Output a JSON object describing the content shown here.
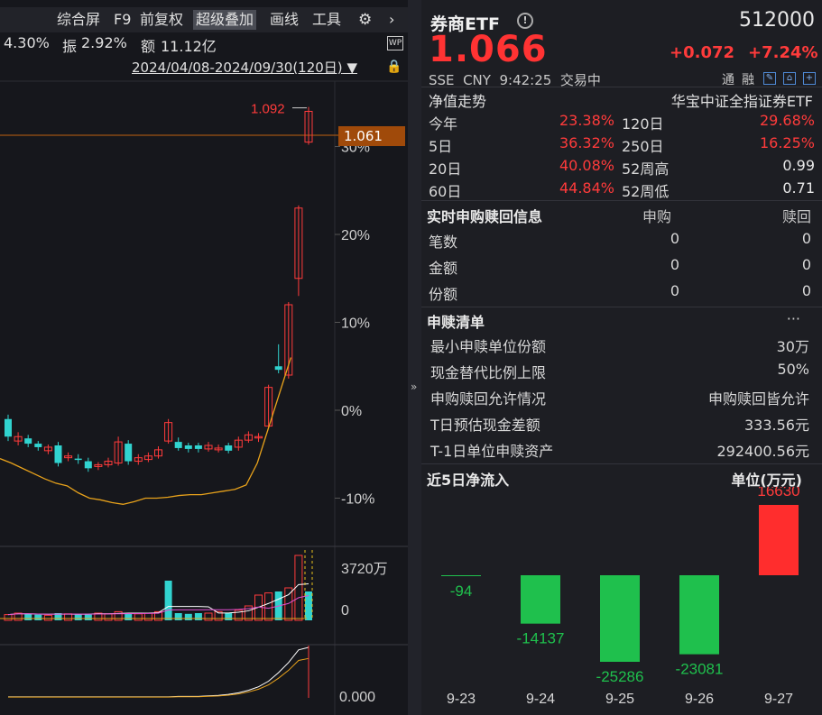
{
  "toolbar": {
    "items": [
      "综合屏",
      "F9",
      "前复权",
      "超级叠加",
      "画线",
      "工具"
    ],
    "active": "超级叠加"
  },
  "stats": {
    "change_pct": "4.30%",
    "amplitude_label": "振",
    "amplitude": "2.92%",
    "amount_label": "额",
    "amount": "11.12亿"
  },
  "date_range": "2024/04/08-2024/09/30(120日)",
  "wp_badge": "WP",
  "kline": {
    "max_label": "1.092",
    "current_tag": "1.061",
    "pct_axis": [
      "30%",
      "20%",
      "10%",
      "0%",
      "-10%"
    ],
    "volume_axis_top": "3720万",
    "volume_axis_zero": "0",
    "indicator_axis": "0.000",
    "candles": [
      {
        "o": -1.0,
        "c": -3.0,
        "h": -0.5,
        "l": -3.5,
        "up": true
      },
      {
        "o": -3.5,
        "c": -3.0,
        "h": -2.5,
        "l": -4.0,
        "up": true
      },
      {
        "o": -3.2,
        "c": -3.8,
        "h": -2.8,
        "l": -4.2,
        "up": false
      },
      {
        "o": -3.8,
        "c": -4.2,
        "h": -3.5,
        "l": -4.6,
        "up": false
      },
      {
        "o": -4.6,
        "c": -4.2,
        "h": -3.9,
        "l": -5.0,
        "up": true
      },
      {
        "o": -4.0,
        "c": -6.0,
        "h": -3.6,
        "l": -6.4,
        "up": false
      },
      {
        "o": -5.4,
        "c": -5.2,
        "h": -4.8,
        "l": -5.8,
        "up": true
      },
      {
        "o": -5.5,
        "c": -5.6,
        "h": -5.0,
        "l": -6.1,
        "up": false
      },
      {
        "o": -5.8,
        "c": -6.6,
        "h": -5.4,
        "l": -7.0,
        "up": false
      },
      {
        "o": -6.4,
        "c": -6.2,
        "h": -5.9,
        "l": -6.8,
        "up": true
      },
      {
        "o": -6.2,
        "c": -5.8,
        "h": -5.4,
        "l": -6.5,
        "up": true
      },
      {
        "o": -6.0,
        "c": -3.6,
        "h": -3.0,
        "l": -6.3,
        "up": true
      },
      {
        "o": -3.8,
        "c": -5.8,
        "h": -3.4,
        "l": -6.2,
        "up": false
      },
      {
        "o": -5.8,
        "c": -5.4,
        "h": -5.0,
        "l": -6.2,
        "up": true
      },
      {
        "o": -5.6,
        "c": -5.2,
        "h": -4.8,
        "l": -5.9,
        "up": true
      },
      {
        "o": -5.2,
        "c": -4.5,
        "h": -4.1,
        "l": -5.5,
        "up": true
      },
      {
        "o": -3.5,
        "c": -1.4,
        "h": -1.0,
        "l": -3.8,
        "up": false
      },
      {
        "o": -3.6,
        "c": -4.3,
        "h": -3.1,
        "l": -4.6,
        "up": false
      },
      {
        "o": -4.0,
        "c": -4.4,
        "h": -3.7,
        "l": -4.8,
        "up": false
      },
      {
        "o": -4.0,
        "c": -4.4,
        "h": -3.7,
        "l": -4.8,
        "up": false
      },
      {
        "o": -4.4,
        "c": -4.0,
        "h": -3.6,
        "l": -4.7,
        "up": true
      },
      {
        "o": -4.5,
        "c": -4.3,
        "h": -3.9,
        "l": -4.8,
        "up": true
      },
      {
        "o": -4.0,
        "c": -4.6,
        "h": -3.7,
        "l": -4.9,
        "up": false
      },
      {
        "o": -4.2,
        "c": -3.4,
        "h": -3.0,
        "l": -4.6,
        "up": true
      },
      {
        "o": -3.4,
        "c": -2.8,
        "h": -2.4,
        "l": -3.7,
        "up": true
      },
      {
        "o": -3.0,
        "c": -3.0,
        "h": -2.6,
        "l": -3.6,
        "up": true
      },
      {
        "o": -1.8,
        "c": 2.6,
        "h": 2.9,
        "l": -2.0,
        "up": true
      },
      {
        "o": 5.0,
        "c": 4.6,
        "h": 7.5,
        "l": 4.2,
        "up": false
      },
      {
        "o": 4.0,
        "c": 12.0,
        "h": 12.3,
        "l": 3.6,
        "up": true
      },
      {
        "o": 15.0,
        "c": 23.0,
        "h": 23.3,
        "l": 13.0,
        "up": true
      },
      {
        "o": 30.5,
        "c": 34.0,
        "h": 34.5,
        "l": 30.2,
        "up": false
      }
    ],
    "ma": [
      -5.5,
      -6.0,
      -6.6,
      -7.2,
      -7.8,
      -8.3,
      -8.6,
      -9.4,
      -10.0,
      -10.2,
      -10.5,
      -10.7,
      -10.4,
      -10.0,
      -10.0,
      -9.9,
      -9.7,
      -9.6,
      -9.6,
      -9.4,
      -9.2,
      -9.0,
      -8.5,
      -6.0,
      -2.0,
      2.0,
      6.0
    ],
    "volumes": [
      0.08,
      0.1,
      0.09,
      0.08,
      0.07,
      0.1,
      0.09,
      0.08,
      0.09,
      0.1,
      0.09,
      0.12,
      0.1,
      0.09,
      0.1,
      0.12,
      0.55,
      0.1,
      0.09,
      0.1,
      0.1,
      0.12,
      0.1,
      0.14,
      0.2,
      0.35,
      0.38,
      0.4,
      0.45,
      0.9,
      0.4
    ],
    "volume_up": [
      true,
      true,
      false,
      false,
      true,
      false,
      true,
      false,
      false,
      true,
      true,
      true,
      false,
      true,
      true,
      true,
      false,
      false,
      false,
      false,
      true,
      true,
      false,
      true,
      true,
      true,
      true,
      false,
      true,
      true,
      false
    ],
    "indicator": [
      0.02,
      0.02,
      0.02,
      0.02,
      0.02,
      0.02,
      0.02,
      0.02,
      0.02,
      0.02,
      0.02,
      0.02,
      0.02,
      0.02,
      0.02,
      0.02,
      0.02,
      0.03,
      0.03,
      0.03,
      0.04,
      0.05,
      0.07,
      0.1,
      0.15,
      0.22,
      0.33,
      0.5,
      0.7,
      0.95,
      1.0
    ]
  },
  "quote": {
    "name": "券商ETF",
    "code": "512000",
    "price": "1.066",
    "change": "+0.072",
    "change_pct": "+7.24%",
    "exchange": "SSE",
    "currency": "CNY",
    "time": "9:42:25",
    "status": "交易中",
    "tong_label": "通",
    "rong_label": "融"
  },
  "nav": {
    "title": "净值走势",
    "index_name": "华宝中证全指证券ETF",
    "rows": [
      {
        "l1": "今年",
        "v1": "23.38%",
        "l2": "120日",
        "v2": "29.68%"
      },
      {
        "l1": "5日",
        "v1": "36.32%",
        "l2": "250日",
        "v2": "16.25%"
      },
      {
        "l1": "20日",
        "v1": "40.08%",
        "l2": "52周高",
        "v2": "0.99"
      },
      {
        "l1": "60日",
        "v1": "44.84%",
        "l2": "52周低",
        "v2": "0.71"
      }
    ]
  },
  "redemption": {
    "title": "实时申购赎回信息",
    "col_buy": "申购",
    "col_sell": "赎回",
    "rows": [
      {
        "label": "笔数",
        "buy": "0",
        "sell": "0"
      },
      {
        "label": "金额",
        "buy": "0",
        "sell": "0"
      },
      {
        "label": "份额",
        "buy": "0",
        "sell": "0"
      }
    ]
  },
  "list": {
    "title": "申赎清单",
    "more": "···",
    "rows": [
      {
        "label": "最小申赎单位份额",
        "value": "30万"
      },
      {
        "label": "现金替代比例上限",
        "value": "50%"
      },
      {
        "label": "申购赎回允许情况",
        "value": "申购赎回皆允许"
      },
      {
        "label": "T日预估现金差额",
        "value": "333.56元"
      },
      {
        "label": "T-1日单位申赎资产",
        "value": "292400.56元"
      }
    ]
  },
  "flow": {
    "title": "近5日净流入",
    "unit": "单位(万元)",
    "colors": {
      "up": "#ff2d2d",
      "down": "#1fc04d"
    }
  },
  "chart_data": {
    "type": "bar",
    "title": "近5日净流入",
    "ylabel": "单位(万元)",
    "categories": [
      "9-23",
      "9-24",
      "9-25",
      "9-26",
      "9-27"
    ],
    "values": [
      -94,
      -14137,
      -25286,
      -23081,
      16630
    ],
    "labels": [
      "-94",
      "-14137",
      "-25286",
      "-23081",
      "16630"
    ]
  }
}
